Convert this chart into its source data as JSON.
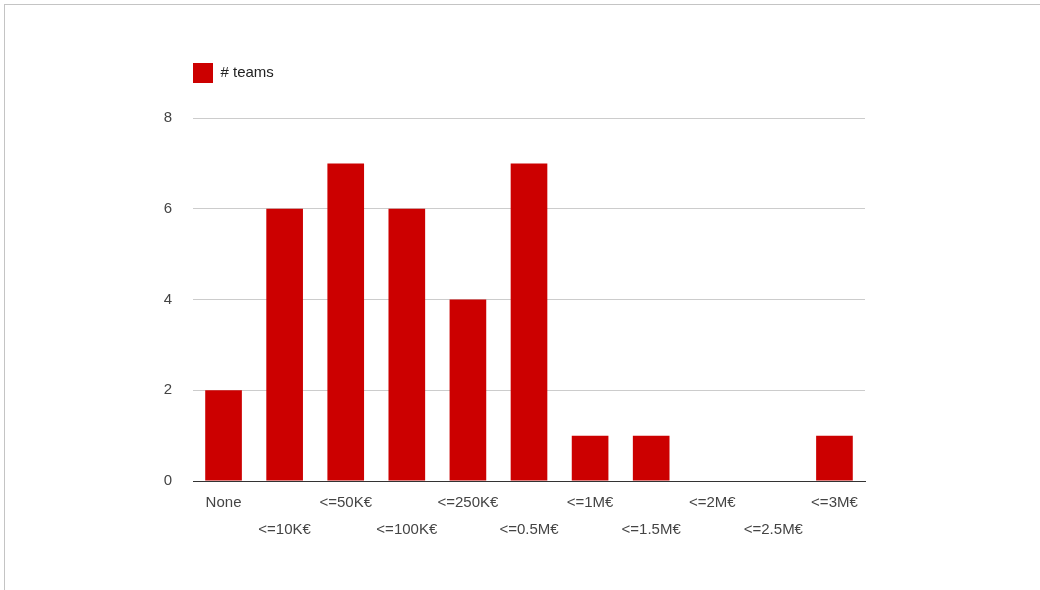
{
  "chart_data": {
    "type": "bar",
    "categories": [
      "None",
      "<=10K€",
      "<=50K€",
      "<=100K€",
      "<=250K€",
      "<=0.5M€",
      "<=1M€",
      "<=1.5M€",
      "<=2M€",
      "<=2.5M€",
      "<=3M€"
    ],
    "series": [
      {
        "name": "# teams",
        "color": "#cc0000",
        "values": [
          2,
          6,
          7,
          6,
          4,
          7,
          1,
          1,
          0,
          0,
          1
        ]
      }
    ],
    "ylim": [
      0,
      8
    ],
    "yticks": [
      0,
      2,
      4,
      6,
      8
    ],
    "grid": "y",
    "legend": "top left"
  }
}
